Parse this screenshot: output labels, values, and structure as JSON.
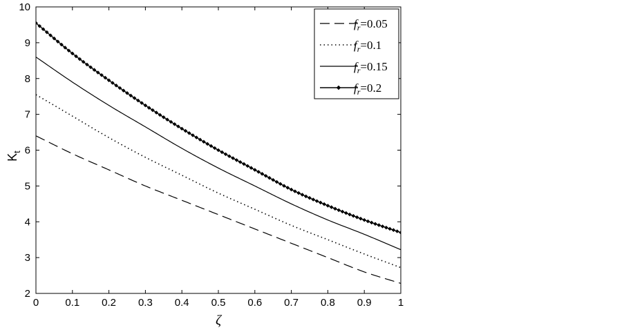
{
  "chart_data": {
    "type": "line",
    "title": "",
    "xlabel": "ζ",
    "ylabel": "K",
    "ylabel_sub": "t",
    "xlim": [
      0,
      1
    ],
    "ylim": [
      2,
      10
    ],
    "xticks": [
      "0",
      "0.1",
      "0.2",
      "0.3",
      "0.4",
      "0.5",
      "0.6",
      "0.7",
      "0.8",
      "0.9",
      "1"
    ],
    "yticks": [
      "2",
      "3",
      "4",
      "5",
      "6",
      "7",
      "8",
      "9",
      "10"
    ],
    "grid": false,
    "legend_position": "top-right",
    "x": [
      0,
      0.1,
      0.2,
      0.3,
      0.4,
      0.5,
      0.6,
      0.7,
      0.8,
      0.9,
      1.0
    ],
    "series": [
      {
        "name_italic": "f",
        "name_sub": "r",
        "name_rest": "=0.05",
        "style": "dashed",
        "values": [
          6.4,
          5.9,
          5.45,
          5.0,
          4.6,
          4.2,
          3.8,
          3.4,
          3.0,
          2.6,
          2.28
        ]
      },
      {
        "name_italic": "f",
        "name_sub": "r",
        "name_rest": "=0.1",
        "style": "dotted",
        "values": [
          7.55,
          6.95,
          6.35,
          5.8,
          5.3,
          4.8,
          4.35,
          3.9,
          3.5,
          3.1,
          2.72
        ]
      },
      {
        "name_italic": "f",
        "name_sub": "r",
        "name_rest": "=0.15",
        "style": "solid",
        "values": [
          8.6,
          7.9,
          7.25,
          6.65,
          6.05,
          5.5,
          5.0,
          4.5,
          4.05,
          3.65,
          3.22
        ]
      },
      {
        "name_italic": "f",
        "name_sub": "r",
        "name_rest": "=0.2",
        "style": "solid-diamond",
        "values": [
          9.55,
          8.7,
          7.95,
          7.25,
          6.6,
          6.0,
          5.45,
          4.9,
          4.45,
          4.05,
          3.7
        ]
      }
    ]
  }
}
